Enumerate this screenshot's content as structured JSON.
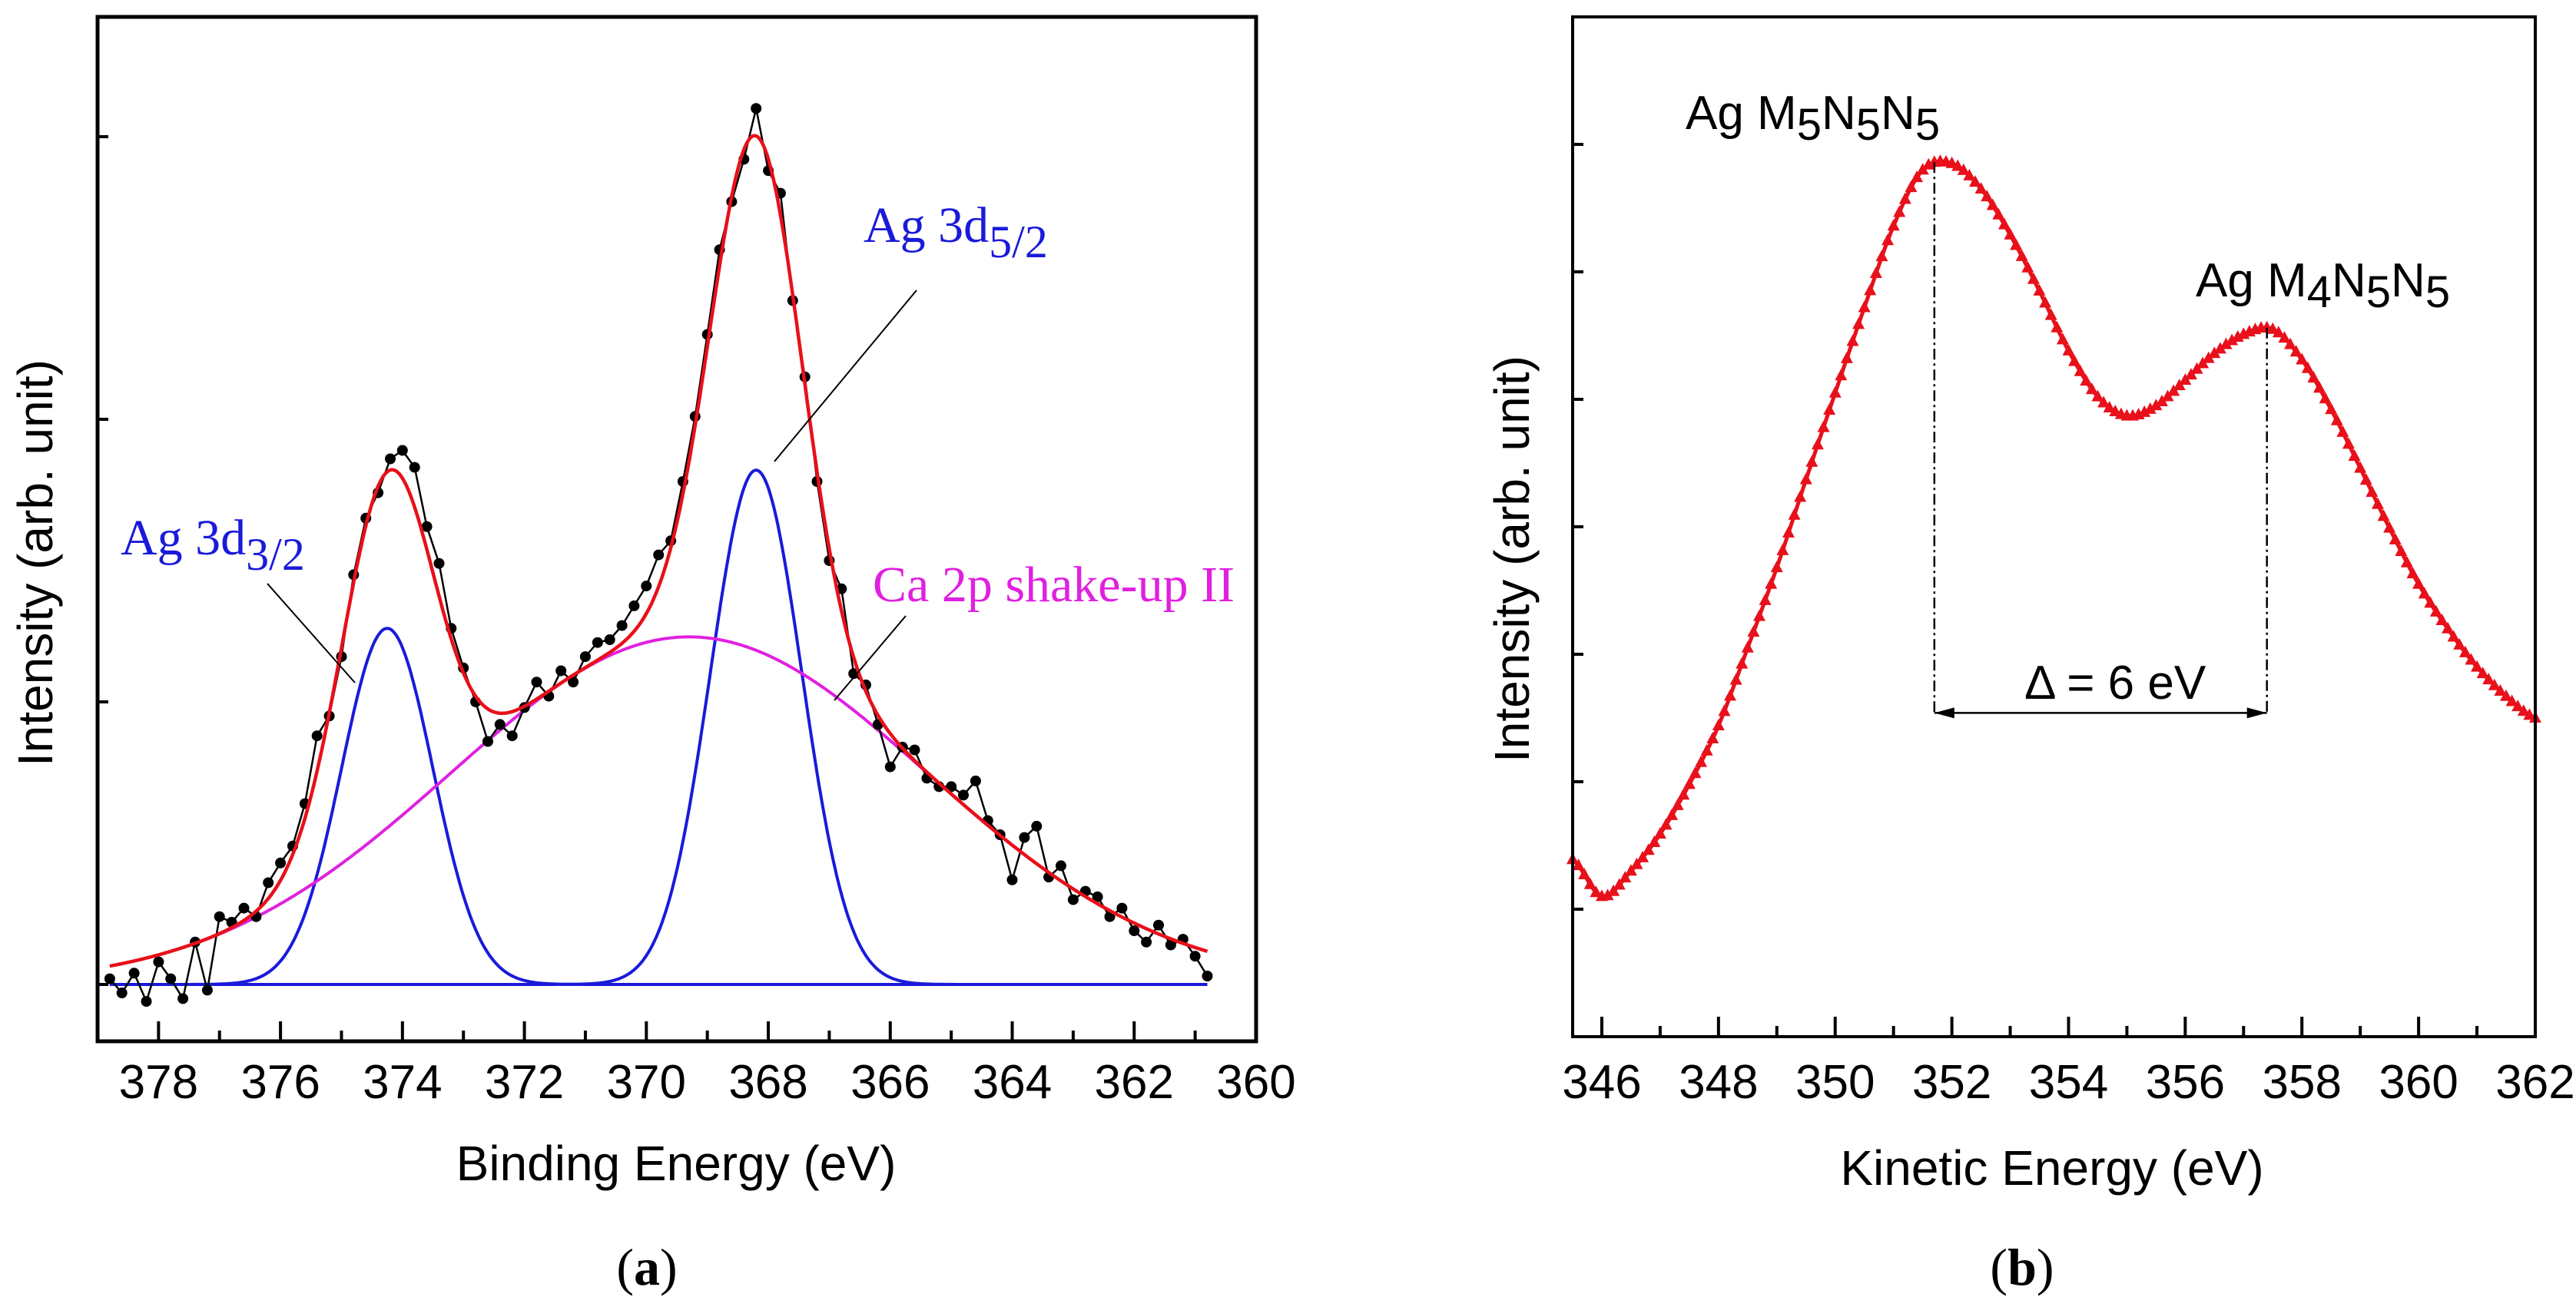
{
  "chart_data": [
    {
      "panel": "a",
      "caption": {
        "open": "(",
        "letter": "a",
        "close": ")"
      },
      "type": "scatter",
      "xlabel": "Binding Energy (eV)",
      "ylabel": "Intensity (arb. unit)",
      "xlim": [
        379,
        360
      ],
      "x_reversed": true,
      "ylim": [
        -0.2,
        3.42
      ],
      "x_ticks": [
        378,
        376,
        374,
        372,
        370,
        368,
        366,
        364,
        362,
        360
      ],
      "x_minor_ticks": [
        377,
        375,
        373,
        371,
        369,
        367,
        365,
        363,
        361
      ],
      "y_ticks": [
        0,
        1,
        2,
        3
      ],
      "y_tick_labels_shown": false,
      "grid": false,
      "colors": {
        "data": "#000000",
        "fit": "#e8101a",
        "ag": "#1a1adb",
        "shake": "#e020e0"
      },
      "data_points": {
        "x_start": 378.8,
        "x_step": -0.2,
        "y": [
          0.02,
          -0.03,
          0.04,
          -0.06,
          0.08,
          0.02,
          -0.05,
          0.15,
          -0.02,
          0.24,
          0.22,
          0.27,
          0.24,
          0.36,
          0.43,
          0.49,
          0.64,
          0.88,
          0.95,
          1.16,
          1.45,
          1.65,
          1.74,
          1.86,
          1.89,
          1.83,
          1.62,
          1.49,
          1.26,
          1.12,
          1.0,
          0.86,
          0.92,
          0.88,
          0.98,
          1.07,
          1.02,
          1.11,
          1.07,
          1.16,
          1.21,
          1.22,
          1.27,
          1.34,
          1.41,
          1.52,
          1.57,
          1.78,
          2.01,
          2.3,
          2.6,
          2.77,
          2.92,
          3.1,
          2.88,
          2.8,
          2.42,
          2.15,
          1.78,
          1.5,
          1.4,
          1.1,
          1.06,
          0.92,
          0.77,
          0.84,
          0.83,
          0.73,
          0.7,
          0.7,
          0.67,
          0.72,
          0.58,
          0.53,
          0.37,
          0.52,
          0.56,
          0.38,
          0.42,
          0.3,
          0.33,
          0.31,
          0.24,
          0.27,
          0.19,
          0.15,
          0.21,
          0.14,
          0.16,
          0.1,
          0.03
        ]
      },
      "fit_range": [
        378.8,
        360.8
      ],
      "components": [
        {
          "label": "Ag 3d",
          "sub": "3/2",
          "center": 374.25,
          "amplitude": 1.26,
          "sigma": 0.75,
          "color": "#1a1adb"
        },
        {
          "label": "Ag 3d",
          "sub": "5/2",
          "center": 368.2,
          "amplitude": 1.82,
          "sigma": 0.75,
          "color": "#1a1adb"
        },
        {
          "label": "Ca 2p shake-up II",
          "center": 369.3,
          "amplitude": 1.23,
          "sigma": 3.92,
          "color": "#e020e0"
        }
      ],
      "envelope": "sum of components"
    },
    {
      "panel": "b",
      "caption": {
        "open": "(",
        "letter": "b",
        "close": ")"
      },
      "type": "scatter",
      "marker": "triangle",
      "xlabel": "Kinetic Energy (eV)",
      "ylabel": "Intensity (arb. unit)",
      "xlim": [
        345.5,
        362
      ],
      "ylim": [
        0,
        8
      ],
      "x_ticks": [
        346,
        348,
        350,
        352,
        354,
        356,
        358,
        360,
        362
      ],
      "x_minor_ticks": [
        347,
        349,
        351,
        353,
        355,
        357,
        359,
        361
      ],
      "y_ticks": [
        1,
        2,
        3,
        4,
        5,
        6,
        7
      ],
      "y_tick_labels_shown": false,
      "grid": false,
      "color": "#e8101a",
      "x": [
        345.5,
        346,
        346.5,
        347,
        347.5,
        348,
        348.5,
        349,
        349.5,
        350,
        350.5,
        351,
        351.5,
        352,
        352.5,
        353,
        353.5,
        354,
        354.5,
        355,
        355.5,
        356,
        356.5,
        357,
        357.5,
        358,
        358.5,
        359,
        359.5,
        360,
        360.5,
        361,
        361.5,
        362
      ],
      "y": [
        1.39,
        1.1,
        1.3,
        1.59,
        1.98,
        2.44,
        3.05,
        3.68,
        4.37,
        5.05,
        5.72,
        6.36,
        6.8,
        6.85,
        6.65,
        6.29,
        5.85,
        5.38,
        5.02,
        4.87,
        4.95,
        5.15,
        5.36,
        5.51,
        5.55,
        5.31,
        4.92,
        4.46,
        3.99,
        3.55,
        3.2,
        2.9,
        2.67,
        2.5
      ],
      "annotations": {
        "peak1": {
          "parts": [
            "Ag M",
            "5",
            "N",
            "5",
            "N",
            "5"
          ],
          "x": 351.7
        },
        "peak2": {
          "parts": [
            "Ag M",
            "4",
            "N",
            "5",
            "N",
            "5"
          ],
          "x": 357.4
        },
        "delta": {
          "text": "Δ = 6 eV",
          "y": 2.54
        }
      }
    }
  ]
}
